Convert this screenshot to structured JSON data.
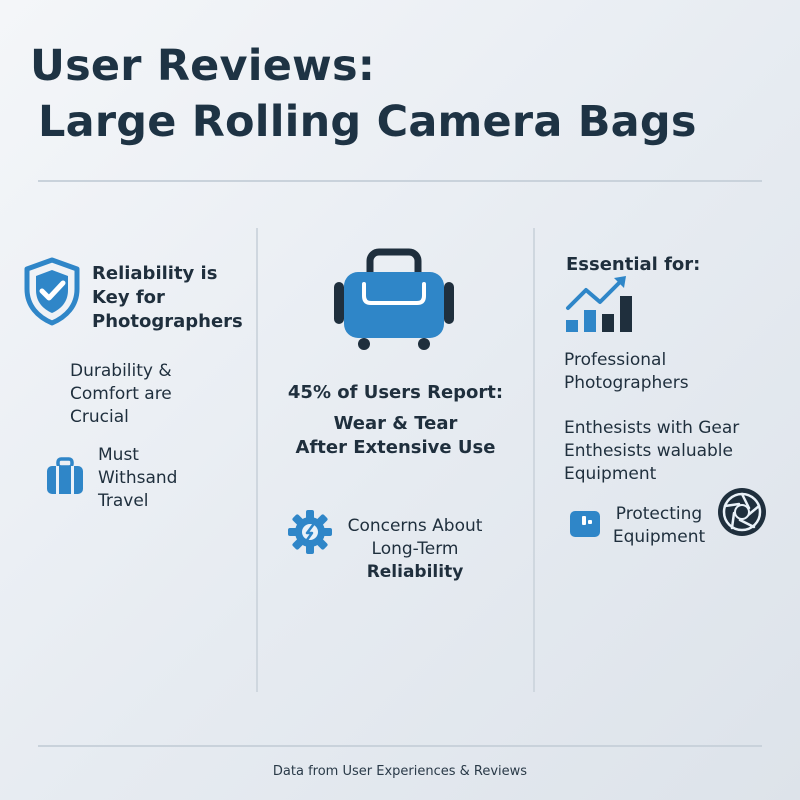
{
  "title": {
    "line1": "User Reviews:",
    "line2": "Large Rolling Camera Bags"
  },
  "left": {
    "heading": [
      "Reliability is",
      "Key for",
      "Photographers"
    ],
    "durability": [
      "Durability &",
      "Comfort are",
      "Crucial"
    ],
    "travel": [
      "Must",
      "Withsand",
      "Travel"
    ],
    "icons": {
      "heading": "shield-check-icon",
      "travel": "suitcase-icon"
    }
  },
  "middle": {
    "stat": "45% of Users Report:",
    "wear": [
      "Wear & Tear",
      "After Extensive Use"
    ],
    "concerns": [
      "Concerns About",
      "Long-Term"
    ],
    "concerns_bold": "Reliability",
    "icons": {
      "top": "rolling-bag-icon",
      "concerns": "gear-icon"
    }
  },
  "right": {
    "heading": "Essential for:",
    "professional": [
      "Professional",
      "Photographers"
    ],
    "enthusiasts": [
      "Enthesists with Gear",
      "Enthesists waluable",
      "Equipment"
    ],
    "protecting": [
      "Protecting",
      "Equipment"
    ],
    "icons": {
      "heading": "growth-chart-icon",
      "protecting": "camera-case-icon",
      "lens": "aperture-icon"
    }
  },
  "footer": "Data from User Experiences & Reviews",
  "colors": {
    "accent": "#2f86c8",
    "dark": "#1f2f3d",
    "background": "#eaeef3"
  }
}
